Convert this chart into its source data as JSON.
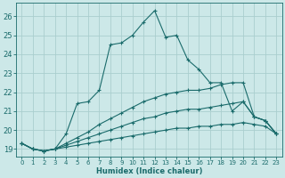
{
  "xlabel": "Humidex (Indice chaleur)",
  "ylabel": "",
  "xlim": [
    -0.5,
    23.5
  ],
  "ylim": [
    18.6,
    26.7
  ],
  "background_color": "#cce8e8",
  "grid_color": "#aacece",
  "line_color": "#1a6b6b",
  "xticks": [
    0,
    1,
    2,
    3,
    4,
    5,
    6,
    7,
    8,
    9,
    10,
    11,
    12,
    13,
    14,
    15,
    16,
    17,
    18,
    19,
    20,
    21,
    22,
    23
  ],
  "yticks": [
    19,
    20,
    21,
    22,
    23,
    24,
    25,
    26
  ],
  "lines": [
    {
      "x": [
        0,
        1,
        2,
        3,
        4,
        5,
        6,
        7,
        8,
        9,
        10,
        11,
        12,
        13,
        14,
        15,
        16,
        17,
        18,
        19,
        20,
        21,
        22,
        23
      ],
      "y": [
        19.3,
        19.0,
        18.9,
        19.0,
        19.8,
        21.4,
        21.5,
        22.1,
        24.5,
        24.6,
        25.0,
        25.7,
        26.3,
        24.9,
        25.0,
        23.7,
        23.2,
        22.5,
        22.5,
        21.0,
        21.5,
        20.7,
        20.5,
        19.8
      ]
    },
    {
      "x": [
        0,
        1,
        2,
        3,
        4,
        5,
        6,
        7,
        8,
        9,
        10,
        11,
        12,
        13,
        14,
        15,
        16,
        17,
        18,
        19,
        20,
        21,
        22,
        23
      ],
      "y": [
        19.3,
        19.0,
        18.9,
        19.0,
        19.3,
        19.6,
        19.9,
        20.3,
        20.6,
        20.9,
        21.2,
        21.5,
        21.7,
        21.9,
        22.0,
        22.1,
        22.1,
        22.2,
        22.4,
        22.5,
        22.5,
        20.7,
        20.5,
        19.8
      ]
    },
    {
      "x": [
        0,
        1,
        2,
        3,
        4,
        5,
        6,
        7,
        8,
        9,
        10,
        11,
        12,
        13,
        14,
        15,
        16,
        17,
        18,
        19,
        20,
        21,
        22,
        23
      ],
      "y": [
        19.3,
        19.0,
        18.9,
        19.0,
        19.2,
        19.4,
        19.6,
        19.8,
        20.0,
        20.2,
        20.4,
        20.6,
        20.7,
        20.9,
        21.0,
        21.1,
        21.1,
        21.2,
        21.3,
        21.4,
        21.5,
        20.7,
        20.5,
        19.8
      ]
    },
    {
      "x": [
        0,
        1,
        2,
        3,
        4,
        5,
        6,
        7,
        8,
        9,
        10,
        11,
        12,
        13,
        14,
        15,
        16,
        17,
        18,
        19,
        20,
        21,
        22,
        23
      ],
      "y": [
        19.3,
        19.0,
        18.9,
        19.0,
        19.1,
        19.2,
        19.3,
        19.4,
        19.5,
        19.6,
        19.7,
        19.8,
        19.9,
        20.0,
        20.1,
        20.1,
        20.2,
        20.2,
        20.3,
        20.3,
        20.4,
        20.3,
        20.2,
        19.8
      ]
    }
  ]
}
